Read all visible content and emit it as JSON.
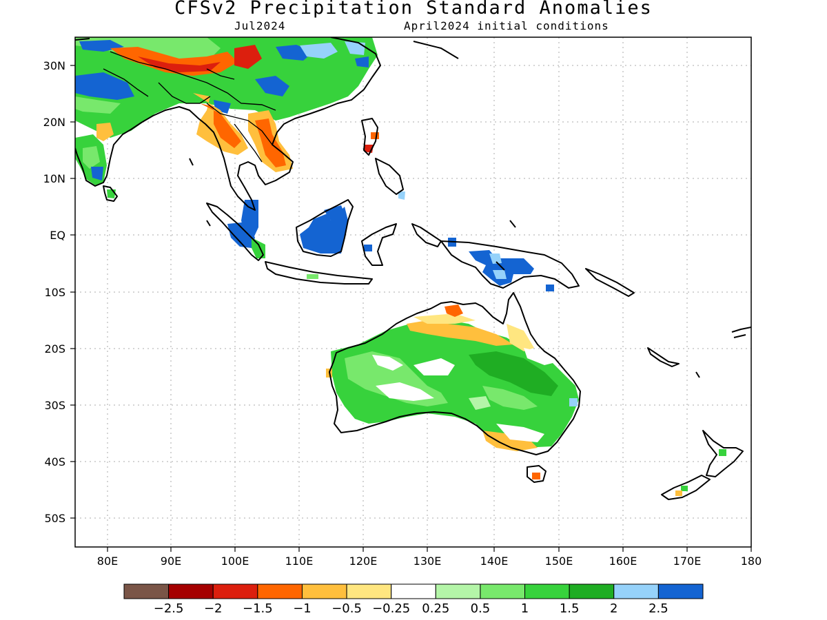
{
  "title": "CFSv2 Precipitation Standard Anomalies",
  "subtitle_left": "Jul2024",
  "subtitle_right": "April2024 initial conditions",
  "axes": {
    "lon_labels": [
      "80E",
      "90E",
      "100E",
      "110E",
      "120E",
      "130E",
      "140E",
      "150E",
      "160E",
      "170E",
      "180"
    ],
    "lat_labels": [
      "30N",
      "20N",
      "10N",
      "EQ",
      "10S",
      "20S",
      "30S",
      "40S",
      "50S"
    ]
  },
  "colorbar": {
    "colors": [
      "#7a5547",
      "#a50000",
      "#dc1f0e",
      "#ff6600",
      "#ffbf3d",
      "#ffe680",
      "#ffffff",
      "#b4f5a8",
      "#78e86c",
      "#37d23c",
      "#1fad23",
      "#96d2fa",
      "#1464d2"
    ],
    "labels": [
      "−2.5",
      "−2",
      "−1.5",
      "−1",
      "−0.5",
      "−0.25",
      "0.25",
      "0.5",
      "1",
      "1.5",
      "2",
      "2.5"
    ]
  },
  "colors": {
    "dry_strong": "#dc1f0e",
    "dry": "#ff6600",
    "dry_weak": "#ffbf3d",
    "wet_weak": "#b4f5a8",
    "wet": "#78e86c",
    "wet_strong": "#37d23c",
    "very_wet": "#1464d2",
    "coast": "#000000",
    "grid": "#aaaaaa"
  }
}
